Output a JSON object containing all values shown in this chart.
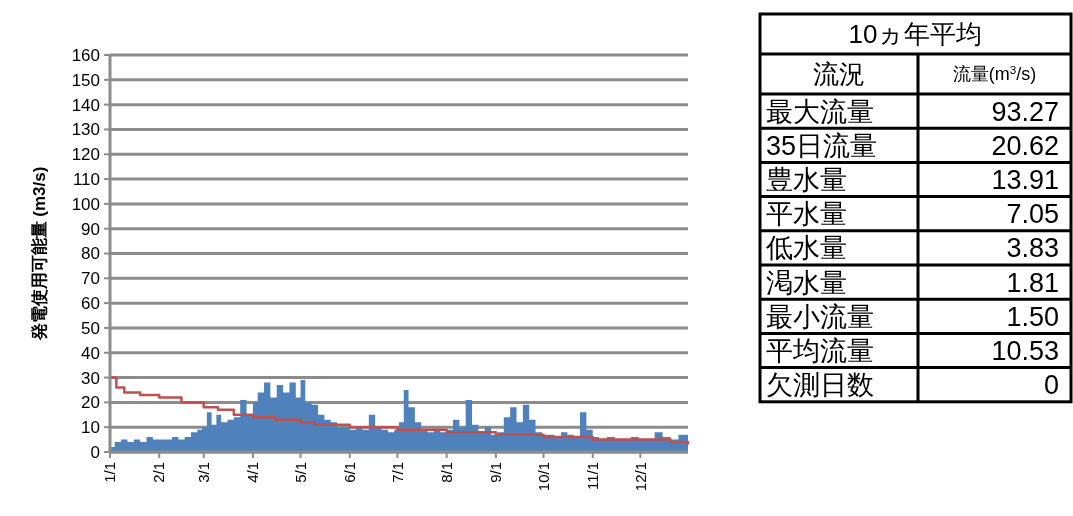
{
  "chart_data": [
    {
      "type": "area",
      "ylabel": "発電使用可能量 (m3/s)",
      "xlim": [
        "--01-01",
        "--12-31"
      ],
      "ylim": [
        0,
        160
      ],
      "yticks": [
        0,
        10,
        20,
        30,
        40,
        50,
        60,
        70,
        80,
        90,
        100,
        110,
        120,
        130,
        140,
        150,
        160
      ],
      "xticks": [
        {
          "value": "--01-01",
          "label": "1/1"
        },
        {
          "value": "--02-01",
          "label": "2/1"
        },
        {
          "value": "--03-01",
          "label": "3/1"
        },
        {
          "value": "--04-01",
          "label": "4/1"
        },
        {
          "value": "--05-01",
          "label": "5/1"
        },
        {
          "value": "--06-01",
          "label": "6/1"
        },
        {
          "value": "--07-01",
          "label": "7/1"
        },
        {
          "value": "--08-01",
          "label": "8/1"
        },
        {
          "value": "--09-01",
          "label": "9/1"
        },
        {
          "value": "--10-01",
          "label": "10/1"
        },
        {
          "value": "--11-01",
          "label": "11/1"
        },
        {
          "value": "--12-01",
          "label": "12/1"
        }
      ],
      "grid": "y",
      "series": [
        {
          "type": "area",
          "color": "#4f81bd",
          "x": [
            "--01-01",
            "--01-04",
            "--01-08",
            "--01-12",
            "--01-16",
            "--01-20",
            "--01-24",
            "--01-28",
            "--02-01",
            "--02-05",
            "--02-09",
            "--02-13",
            "--02-17",
            "--02-21",
            "--02-25",
            "--02-28",
            "--03-03",
            "--03-06",
            "--03-09",
            "--03-12",
            "--03-16",
            "--03-20",
            "--03-24",
            "--03-28",
            "--04-01",
            "--04-04",
            "--04-08",
            "--04-12",
            "--04-16",
            "--04-20",
            "--04-24",
            "--04-28",
            "--05-01",
            "--05-04",
            "--05-08",
            "--05-12",
            "--05-16",
            "--05-20",
            "--05-24",
            "--05-28",
            "--06-01",
            "--06-05",
            "--06-09",
            "--06-13",
            "--06-17",
            "--06-21",
            "--06-25",
            "--06-29",
            "--07-02",
            "--07-05",
            "--07-08",
            "--07-12",
            "--07-16",
            "--07-20",
            "--07-24",
            "--07-28",
            "--08-01",
            "--08-05",
            "--08-09",
            "--08-13",
            "--08-17",
            "--08-21",
            "--08-25",
            "--08-29",
            "--09-02",
            "--09-06",
            "--09-10",
            "--09-14",
            "--09-18",
            "--09-22",
            "--09-26",
            "--09-30",
            "--10-04",
            "--10-08",
            "--10-12",
            "--10-16",
            "--10-20",
            "--10-24",
            "--10-28",
            "--11-01",
            "--11-05",
            "--11-10",
            "--11-15",
            "--11-20",
            "--11-25",
            "--11-30",
            "--12-05",
            "--12-10",
            "--12-15",
            "--12-20",
            "--12-25",
            "--12-31"
          ],
          "values": [
            2,
            4,
            5,
            4,
            5,
            4,
            6,
            5,
            5,
            5,
            6,
            5,
            6,
            8,
            9,
            10,
            16,
            11,
            15,
            12,
            13,
            14,
            21,
            15,
            20,
            24,
            28,
            22,
            27,
            24,
            28,
            22,
            29,
            20,
            19,
            15,
            13,
            12,
            10,
            10,
            9,
            10,
            9,
            15,
            10,
            9,
            8,
            9,
            12,
            25,
            18,
            12,
            9,
            8,
            9,
            8,
            9,
            13,
            10,
            21,
            11,
            8,
            10,
            7,
            8,
            14,
            18,
            12,
            19,
            13,
            8,
            7,
            7,
            6,
            8,
            7,
            6,
            16,
            9,
            6,
            5,
            6,
            5,
            5,
            6,
            5,
            5,
            8,
            6,
            5,
            7,
            3
          ]
        },
        {
          "type": "step",
          "color": "#c0504d",
          "x": [
            "--01-01",
            "--01-05",
            "--01-10",
            "--01-20",
            "--02-01",
            "--02-15",
            "--03-01",
            "--03-10",
            "--03-20",
            "--04-01",
            "--04-15",
            "--05-01",
            "--05-10",
            "--06-01",
            "--07-01",
            "--08-01",
            "--09-01",
            "--10-01",
            "--11-01",
            "--12-20",
            "--12-31"
          ],
          "values": [
            30,
            26,
            24,
            23,
            22,
            20,
            18,
            17,
            15,
            14,
            13,
            12,
            11,
            10,
            9,
            8,
            7,
            6,
            5,
            4,
            3
          ]
        }
      ]
    },
    {
      "type": "other",
      "title": "10ヵ年平均",
      "annotations": [
        "流況",
        "流量(m$^{3}$/s)"
      ],
      "categories": [
        "最大流量",
        "35日流量",
        "豊水量",
        "平水量",
        "低水量",
        "渇水量",
        "最小流量",
        "平均流量",
        "欠測日数"
      ],
      "value_labels": [
        "93.27",
        "20.62",
        "13.91",
        "7.05",
        "3.83",
        "1.81",
        "1.50",
        "10.53",
        "0"
      ]
    }
  ]
}
